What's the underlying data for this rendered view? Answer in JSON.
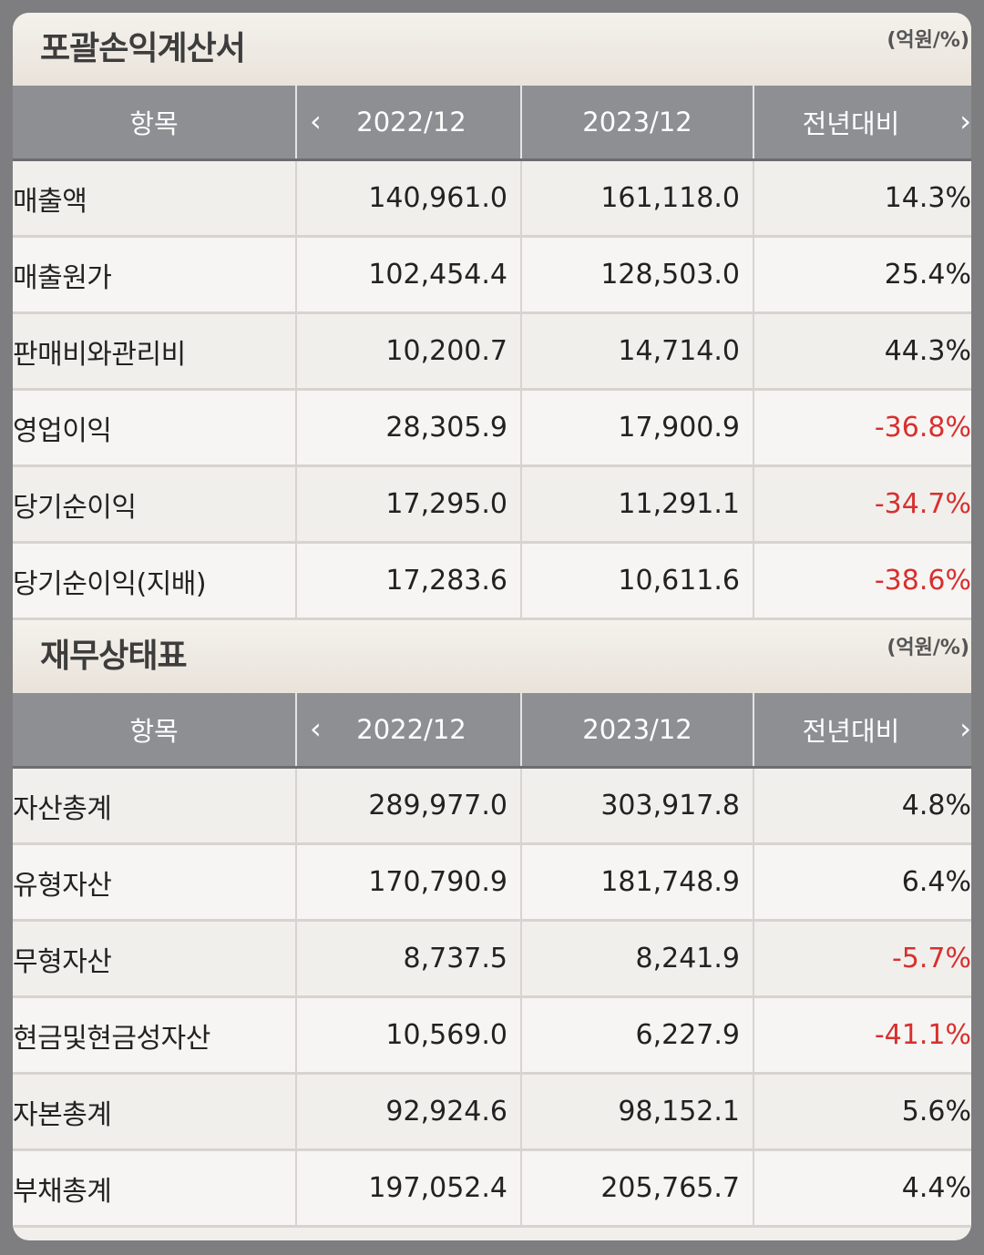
{
  "income_statement": {
    "title": "포괄손익계산서",
    "unit": "(억원/%)",
    "headers": {
      "item": "항목",
      "period1": "2022/12",
      "period2": "2023/12",
      "yoy": "전년대비",
      "prev_icon": "chevron-left-icon",
      "next_icon": "chevron-right-icon"
    },
    "rows": [
      {
        "label": "매출액",
        "v2022": "140,961.0",
        "v2023": "161,118.0",
        "yoy": "14.3%",
        "negative": false
      },
      {
        "label": "매출원가",
        "v2022": "102,454.4",
        "v2023": "128,503.0",
        "yoy": "25.4%",
        "negative": false
      },
      {
        "label": "판매비와관리비",
        "v2022": "10,200.7",
        "v2023": "14,714.0",
        "yoy": "44.3%",
        "negative": false
      },
      {
        "label": "영업이익",
        "v2022": "28,305.9",
        "v2023": "17,900.9",
        "yoy": "-36.8%",
        "negative": true
      },
      {
        "label": "당기순이익",
        "v2022": "17,295.0",
        "v2023": "11,291.1",
        "yoy": "-34.7%",
        "negative": true
      },
      {
        "label": "당기순이익(지배)",
        "v2022": "17,283.6",
        "v2023": "10,611.6",
        "yoy": "-38.6%",
        "negative": true
      }
    ]
  },
  "balance_sheet": {
    "title": "재무상태표",
    "unit": "(억원/%)",
    "headers": {
      "item": "항목",
      "period1": "2022/12",
      "period2": "2023/12",
      "yoy": "전년대비",
      "prev_icon": "chevron-left-icon",
      "next_icon": "chevron-right-icon"
    },
    "rows": [
      {
        "label": "자산총계",
        "v2022": "289,977.0",
        "v2023": "303,917.8",
        "yoy": "4.8%",
        "negative": false
      },
      {
        "label": "유형자산",
        "v2022": "170,790.9",
        "v2023": "181,748.9",
        "yoy": "6.4%",
        "negative": false
      },
      {
        "label": "무형자산",
        "v2022": "8,737.5",
        "v2023": "8,241.9",
        "yoy": "-5.7%",
        "negative": true
      },
      {
        "label": "현금및현금성자산",
        "v2022": "10,569.0",
        "v2023": "6,227.9",
        "yoy": "-41.1%",
        "negative": true
      },
      {
        "label": "자본총계",
        "v2022": "92,924.6",
        "v2023": "98,152.1",
        "yoy": "5.6%",
        "negative": false
      },
      {
        "label": "부채총계",
        "v2022": "197,052.4",
        "v2023": "205,765.7",
        "yoy": "4.4%",
        "negative": false
      }
    ]
  },
  "colors": {
    "header_bg": "#8e8f93",
    "negative": "#d7302e",
    "row_bg": "#f1efec"
  }
}
